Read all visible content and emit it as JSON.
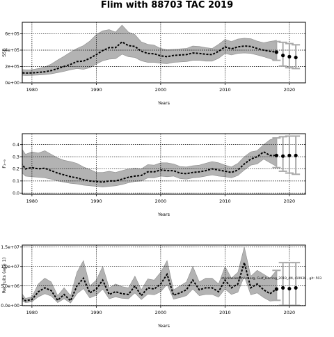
{
  "title": "Flim with 88703 TAC 2019",
  "annotation": "stockassessment.org, Gulf_Herring_2019_4N, r10938 , git: 503",
  "chart_data": [
    {
      "type": "line",
      "ylabel": "SSB",
      "xlabel": "Years",
      "xlim": [
        1978.5,
        2022.5
      ],
      "ylim": [
        0,
        740000
      ],
      "xticks": [
        1980,
        1990,
        2000,
        2010,
        2020
      ],
      "xtick_labels": [
        "1980",
        "1990",
        "2000",
        "2010",
        "2020"
      ],
      "yticks": [
        0,
        200000,
        400000,
        600000
      ],
      "ytick_labels": [
        "0e+00",
        "2e+05",
        "4e+05",
        "6e+05"
      ],
      "grid": true,
      "years": [
        1978,
        1979,
        1980,
        1981,
        1982,
        1983,
        1984,
        1985,
        1986,
        1987,
        1988,
        1989,
        1990,
        1991,
        1992,
        1993,
        1994,
        1995,
        1996,
        1997,
        1998,
        1999,
        2000,
        2001,
        2002,
        2003,
        2004,
        2005,
        2006,
        2007,
        2008,
        2009,
        2010,
        2011,
        2012,
        2013,
        2014,
        2015,
        2016,
        2017,
        2018
      ],
      "estimate": [
        125000,
        120000,
        122000,
        128000,
        135000,
        150000,
        175000,
        200000,
        225000,
        260000,
        265000,
        300000,
        345000,
        395000,
        430000,
        430000,
        500000,
        455000,
        445000,
        385000,
        360000,
        355000,
        330000,
        320000,
        335000,
        340000,
        345000,
        365000,
        360000,
        350000,
        345000,
        385000,
        440000,
        415000,
        440000,
        450000,
        445000,
        420000,
        400000,
        385000,
        375000
      ],
      "upper": [
        165000,
        160000,
        162000,
        175000,
        195000,
        230000,
        280000,
        325000,
        375000,
        420000,
        455000,
        510000,
        590000,
        635000,
        650000,
        620000,
        705000,
        620000,
        590000,
        500000,
        470000,
        460000,
        420000,
        405000,
        410000,
        415000,
        420000,
        450000,
        445000,
        430000,
        420000,
        470000,
        530000,
        505000,
        535000,
        545000,
        540000,
        510000,
        490000,
        505000,
        520000
      ],
      "lower": [
        95000,
        90000,
        92000,
        95000,
        100000,
        110000,
        125000,
        140000,
        160000,
        175000,
        165000,
        185000,
        230000,
        270000,
        290000,
        295000,
        350000,
        320000,
        310000,
        270000,
        250000,
        250000,
        240000,
        235000,
        250000,
        255000,
        260000,
        275000,
        275000,
        265000,
        265000,
        300000,
        360000,
        340000,
        360000,
        365000,
        360000,
        340000,
        320000,
        295000,
        270000
      ],
      "forecast": [
        {
          "year": 2018,
          "median": 375000,
          "low": 275000,
          "high": 505000
        },
        {
          "year": 2019,
          "median": 335000,
          "low": 205000,
          "high": 495000
        },
        {
          "year": 2020,
          "median": 320000,
          "low": 185000,
          "high": 480000
        },
        {
          "year": 2021,
          "median": 310000,
          "low": 175000,
          "high": 465000
        }
      ]
    },
    {
      "type": "line",
      "ylabel": "F₃₋₉",
      "xlabel": "Years",
      "xlim": [
        1978.5,
        2022.5
      ],
      "ylim": [
        -0.01,
        0.49
      ],
      "xticks": [
        1980,
        1990,
        2000,
        2010,
        2020
      ],
      "xtick_labels": [
        "1980",
        "1990",
        "2000",
        "2010",
        "2020"
      ],
      "yticks": [
        0.0,
        0.1,
        0.2,
        0.3,
        0.4
      ],
      "ytick_labels": [
        "0.0",
        "0.1",
        "0.2",
        "0.3",
        "0.4"
      ],
      "grid": true,
      "years": [
        1978,
        1979,
        1980,
        1981,
        1982,
        1983,
        1984,
        1985,
        1986,
        1987,
        1988,
        1989,
        1990,
        1991,
        1992,
        1993,
        1994,
        1995,
        1996,
        1997,
        1998,
        1999,
        2000,
        2001,
        2002,
        2003,
        2004,
        2005,
        2006,
        2007,
        2008,
        2009,
        2010,
        2011,
        2012,
        2013,
        2014,
        2015,
        2016,
        2017,
        2018
      ],
      "estimate": [
        0.27,
        0.2,
        0.21,
        0.2,
        0.205,
        0.185,
        0.165,
        0.15,
        0.135,
        0.125,
        0.11,
        0.1,
        0.095,
        0.09,
        0.1,
        0.1,
        0.115,
        0.13,
        0.14,
        0.145,
        0.175,
        0.175,
        0.19,
        0.185,
        0.185,
        0.165,
        0.16,
        0.17,
        0.175,
        0.185,
        0.2,
        0.19,
        0.18,
        0.17,
        0.19,
        0.24,
        0.28,
        0.3,
        0.34,
        0.31,
        0.31
      ],
      "upper": [
        0.4,
        0.32,
        0.34,
        0.33,
        0.35,
        0.32,
        0.29,
        0.27,
        0.26,
        0.245,
        0.215,
        0.195,
        0.17,
        0.17,
        0.18,
        0.17,
        0.185,
        0.2,
        0.205,
        0.2,
        0.235,
        0.23,
        0.25,
        0.25,
        0.24,
        0.22,
        0.215,
        0.225,
        0.23,
        0.245,
        0.26,
        0.25,
        0.23,
        0.215,
        0.245,
        0.3,
        0.34,
        0.35,
        0.4,
        0.44,
        0.455
      ],
      "lower": [
        0.19,
        0.14,
        0.135,
        0.13,
        0.125,
        0.115,
        0.1,
        0.09,
        0.08,
        0.075,
        0.065,
        0.06,
        0.055,
        0.05,
        0.055,
        0.06,
        0.07,
        0.085,
        0.095,
        0.1,
        0.125,
        0.125,
        0.14,
        0.135,
        0.14,
        0.12,
        0.115,
        0.125,
        0.13,
        0.14,
        0.15,
        0.14,
        0.135,
        0.125,
        0.145,
        0.19,
        0.23,
        0.24,
        0.28,
        0.25,
        0.22
      ],
      "forecast": [
        {
          "year": 2018,
          "median": 0.31,
          "low": 0.21,
          "high": 0.455
        },
        {
          "year": 2019,
          "median": 0.305,
          "low": 0.18,
          "high": 0.465
        },
        {
          "year": 2020,
          "median": 0.31,
          "low": 0.165,
          "high": 0.47
        },
        {
          "year": 2021,
          "median": 0.31,
          "low": 0.155,
          "high": 0.47
        }
      ]
    },
    {
      "type": "line",
      "ylabel": "Recruits (age 1)",
      "xlabel": "Years",
      "xlim": [
        1978.5,
        2022.5
      ],
      "ylim": [
        -80000,
        15500000
      ],
      "xticks": [
        1980,
        1990,
        2000,
        2010,
        2020
      ],
      "xtick_labels": [
        "1980",
        "1990",
        "2000",
        "2010",
        "2020"
      ],
      "yticks": [
        0,
        5000000,
        10000000,
        15000000
      ],
      "ytick_labels": [
        "0.0e+00",
        "5.0e+06",
        "1.0e+07",
        "1.5e+07"
      ],
      "grid": true,
      "years": [
        1978,
        1979,
        1980,
        1981,
        1982,
        1983,
        1984,
        1985,
        1986,
        1987,
        1988,
        1989,
        1990,
        1991,
        1992,
        1993,
        1994,
        1995,
        1996,
        1997,
        1998,
        1999,
        2000,
        2001,
        2002,
        2003,
        2004,
        2005,
        2006,
        2007,
        2008,
        2009,
        2010,
        2011,
        2012,
        2013,
        2014,
        2015,
        2016,
        2017,
        2018
      ],
      "estimate": [
        2500000,
        1200000,
        1500000,
        3500000,
        4500000,
        3800000,
        1300000,
        2800000,
        1200000,
        5000000,
        7000000,
        3200000,
        4200000,
        6500000,
        2800000,
        3500000,
        3000000,
        2800000,
        5000000,
        2500000,
        4500000,
        4200000,
        5500000,
        8000000,
        2600000,
        3200000,
        4000000,
        6500000,
        4000000,
        4500000,
        4500000,
        3500000,
        6500000,
        4500000,
        5500000,
        11000000,
        4500000,
        5500000,
        4000000,
        3000000,
        4200000
      ],
      "upper": [
        4000000,
        1800000,
        2200000,
        5500000,
        7000000,
        6000000,
        2500000,
        4500000,
        2500000,
        8500000,
        11500000,
        5000000,
        6500000,
        10000000,
        4500000,
        5500000,
        4800000,
        4500000,
        7500000,
        4000000,
        6800000,
        6500000,
        8500000,
        11500000,
        4000000,
        5000000,
        6000000,
        10000000,
        6000000,
        7000000,
        7000000,
        5500000,
        10000000,
        7000000,
        8500000,
        15000000,
        7500000,
        9000000,
        8000000,
        7000000,
        9000000
      ],
      "lower": [
        1600000,
        700000,
        900000,
        2200000,
        3000000,
        2400000,
        700000,
        1700000,
        600000,
        3000000,
        4300000,
        1900000,
        2600000,
        4200000,
        1700000,
        2200000,
        1800000,
        1700000,
        3200000,
        1500000,
        2900000,
        2700000,
        3500000,
        5400000,
        1600000,
        2000000,
        2500000,
        4200000,
        2500000,
        2800000,
        2800000,
        2100000,
        4200000,
        2800000,
        3400000,
        7500000,
        2700000,
        3200000,
        2000000,
        1100000,
        1300000
      ],
      "forecast": [
        {
          "year": 2018,
          "median": 4200000,
          "low": 1300000,
          "high": 9000000
        },
        {
          "year": 2019,
          "median": 4500000,
          "low": 0,
          "high": 11000000
        },
        {
          "year": 2020,
          "median": 4300000,
          "low": 0,
          "high": 11000000
        },
        {
          "year": 2021,
          "median": 4500000,
          "low": 0,
          "high": 11000000
        }
      ]
    }
  ]
}
